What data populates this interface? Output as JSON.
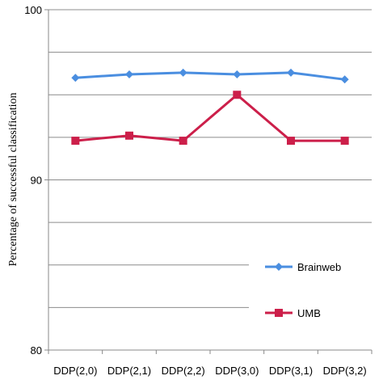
{
  "chart_data": {
    "type": "line",
    "categories": [
      "DDP(2,0)",
      "DDP(2,1)",
      "DDP(2,2)",
      "DDP(3,0)",
      "DDP(3,1)",
      "DDP(3,2)"
    ],
    "series": [
      {
        "name": "Brainweb",
        "values": [
          96.0,
          96.2,
          96.3,
          96.2,
          96.3,
          95.9
        ],
        "color": "#4a8ee0",
        "marker": "diamond"
      },
      {
        "name": "UMB",
        "values": [
          92.3,
          92.6,
          92.3,
          95.0,
          92.3,
          92.3
        ],
        "color": "#cc1f4a",
        "marker": "square"
      }
    ],
    "title": "",
    "xlabel": "",
    "ylabel": "Percentage of successful classification",
    "ylim": [
      80,
      100
    ],
    "yticks": [
      80,
      90,
      100
    ],
    "grid": true,
    "legend_position": "right"
  }
}
